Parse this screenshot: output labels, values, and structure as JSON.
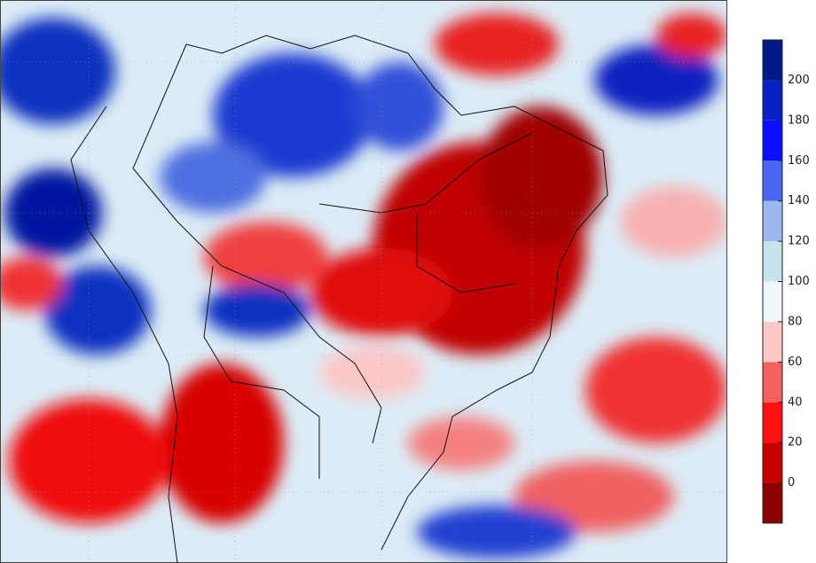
{
  "colorbar": {
    "lim": [
      -20,
      220
    ],
    "ticks": [
      0,
      20,
      40,
      60,
      80,
      100,
      120,
      140,
      160,
      180,
      200
    ],
    "colors": [
      "#8b0000",
      "#c40000",
      "#ff1010",
      "#f46060",
      "#fcc8c8",
      "#eef6fa",
      "#c6e4ec",
      "#9cb8ec",
      "#4a66ee",
      "#0a10ff",
      "#0820c4",
      "#001a88"
    ]
  }
}
